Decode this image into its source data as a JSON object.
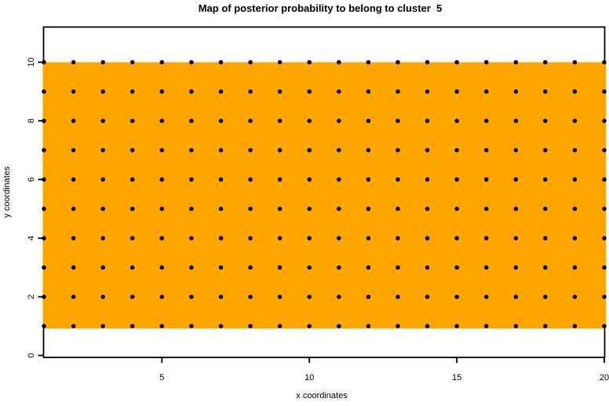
{
  "chart_data": {
    "type": "heatmap",
    "title": "Map of posterior probability to belong to cluster  5",
    "xlabel": "x coordinates",
    "ylabel": "y coordinates",
    "xlim": [
      1,
      20
    ],
    "ylim": [
      0,
      11.2
    ],
    "x_ticks": [
      5,
      10,
      15,
      20
    ],
    "y_ticks": [
      0,
      2,
      4,
      6,
      8,
      10
    ],
    "grid": false,
    "legend": "none",
    "background": "#FFFFFF",
    "region": {
      "x_range": [
        1,
        20
      ],
      "y_range": [
        1,
        10
      ],
      "fill": "#FFA500"
    },
    "points": {
      "x_values": [
        1,
        2,
        3,
        4,
        5,
        6,
        7,
        8,
        9,
        10,
        11,
        12,
        13,
        14,
        15,
        16,
        17,
        18,
        19,
        20
      ],
      "y_values": [
        1,
        2,
        3,
        4,
        5,
        6,
        7,
        8,
        9,
        10
      ],
      "layout": "full integer grid (every x paired with every y)",
      "marker": "filled-circle",
      "color": "#000000"
    },
    "colors": {
      "region_fill": "#FFA500",
      "point": "#000000",
      "axis": "#000000",
      "title": "#000000"
    }
  }
}
